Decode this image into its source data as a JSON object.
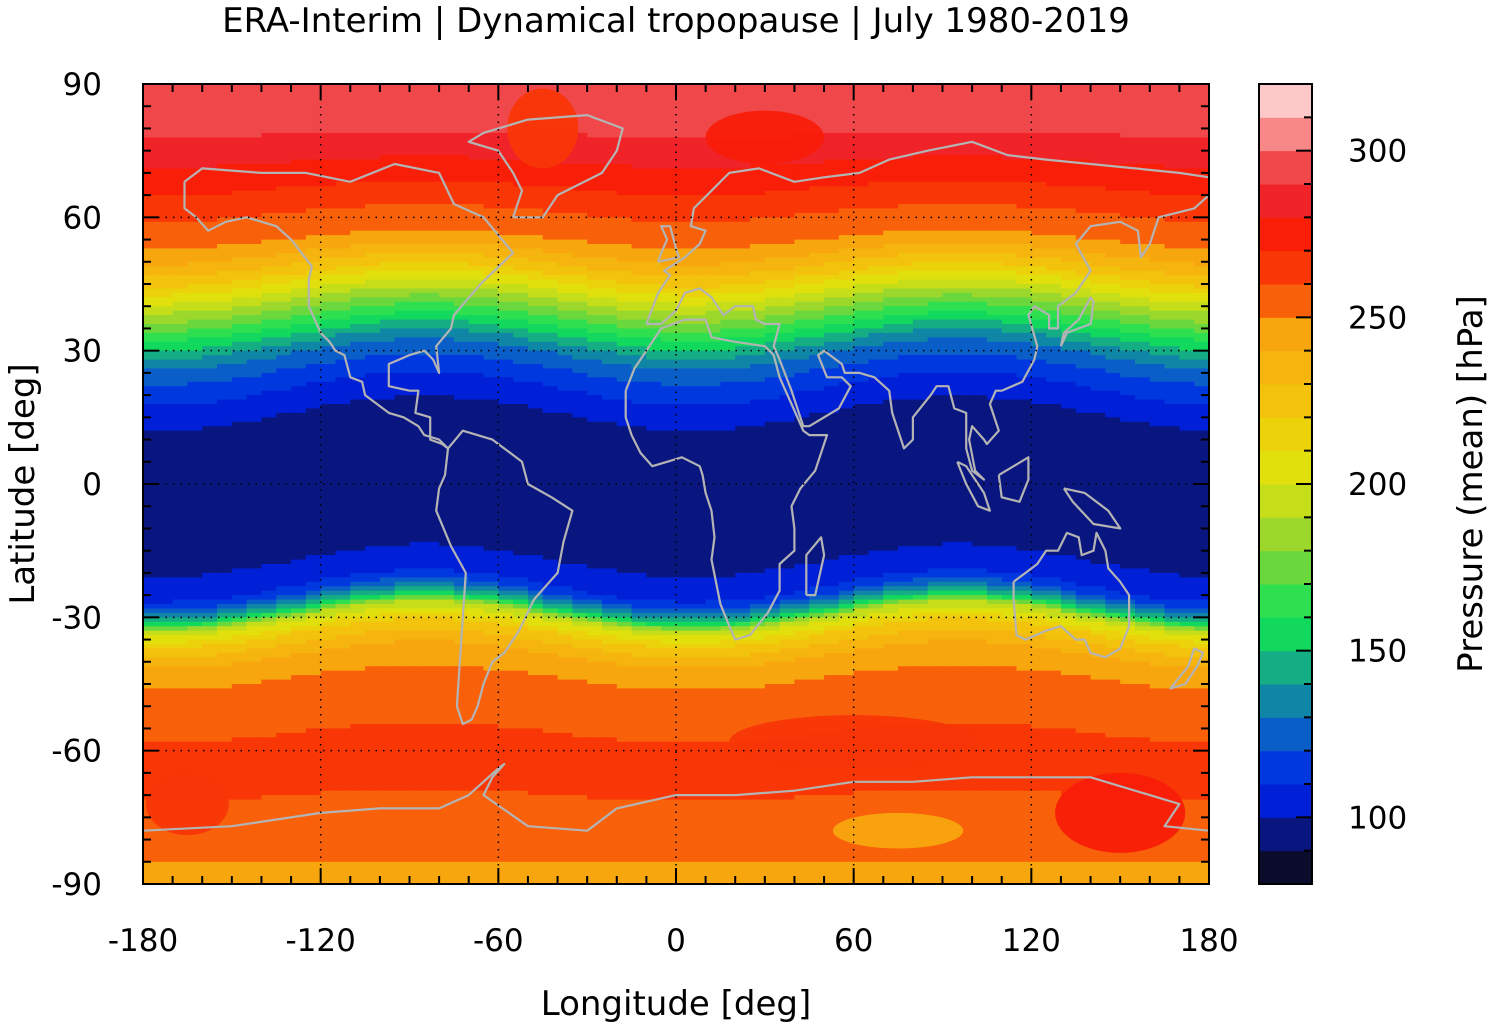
{
  "chart_data": {
    "type": "heatmap",
    "title": "ERA-Interim | Dynamical tropopause | July 1980-2019",
    "xlabel": "Longitude [deg]",
    "ylabel": "Latitude [deg]",
    "colorbar_label": "Pressure (mean) [hPa]",
    "xlim": [
      -180,
      180
    ],
    "ylim": [
      -90,
      90
    ],
    "x_ticks": [
      -180,
      -120,
      -60,
      0,
      60,
      120,
      180
    ],
    "y_ticks": [
      90,
      60,
      30,
      0,
      -30,
      -60,
      -90
    ],
    "x_tick_labels": [
      "-180",
      "-120",
      "-60",
      "0",
      "60",
      "120",
      "180"
    ],
    "y_tick_labels": [
      "90",
      "60",
      "30",
      "0",
      "-30",
      "-60",
      "-90"
    ],
    "colorbar_range": [
      80,
      320
    ],
    "colorbar_ticks": [
      100,
      150,
      200,
      250,
      300
    ],
    "colorbar_tick_labels": [
      "100",
      "150",
      "200",
      "250",
      "300"
    ],
    "grid": true,
    "coastline_color": "#b4b4b4",
    "levels": [
      {
        "from": 80,
        "to": 90,
        "color": "#0b0c2c"
      },
      {
        "from": 90,
        "to": 100,
        "color": "#0a1680"
      },
      {
        "from": 100,
        "to": 110,
        "color": "#0020d8"
      },
      {
        "from": 110,
        "to": 120,
        "color": "#0038e0"
      },
      {
        "from": 120,
        "to": 130,
        "color": "#0a5ec8"
      },
      {
        "from": 130,
        "to": 140,
        "color": "#0f86a6"
      },
      {
        "from": 140,
        "to": 150,
        "color": "#14ad84"
      },
      {
        "from": 150,
        "to": 160,
        "color": "#12d85e"
      },
      {
        "from": 160,
        "to": 170,
        "color": "#2ee050"
      },
      {
        "from": 170,
        "to": 180,
        "color": "#6ad83c"
      },
      {
        "from": 180,
        "to": 190,
        "color": "#9cd82c"
      },
      {
        "from": 190,
        "to": 200,
        "color": "#c6de1a"
      },
      {
        "from": 200,
        "to": 210,
        "color": "#e2e00c"
      },
      {
        "from": 210,
        "to": 220,
        "color": "#ecd20a"
      },
      {
        "from": 220,
        "to": 230,
        "color": "#f2c20c"
      },
      {
        "from": 230,
        "to": 240,
        "color": "#f6b40e"
      },
      {
        "from": 240,
        "to": 250,
        "color": "#f8a60e"
      },
      {
        "from": 250,
        "to": 260,
        "color": "#f8600a"
      },
      {
        "from": 260,
        "to": 270,
        "color": "#f83606"
      },
      {
        "from": 270,
        "to": 280,
        "color": "#f81e08"
      },
      {
        "from": 280,
        "to": 290,
        "color": "#f02428"
      },
      {
        "from": 290,
        "to": 300,
        "color": "#f0484a"
      },
      {
        "from": 300,
        "to": 310,
        "color": "#f88888"
      },
      {
        "from": 310,
        "to": 320,
        "color": "#fcc8c8"
      }
    ],
    "zonal_profile": {
      "lat": [
        -90,
        -80,
        -70,
        -60,
        -50,
        -40,
        -34,
        -30,
        -28,
        -24,
        -20,
        -12,
        0,
        12,
        18,
        24,
        30,
        36,
        42,
        48,
        54,
        60,
        70,
        80,
        90
      ],
      "pressure": [
        248,
        252,
        260,
        262,
        257,
        246,
        222,
        192,
        150,
        112,
        104,
        92,
        90,
        92,
        104,
        114,
        132,
        162,
        192,
        224,
        248,
        258,
        276,
        292,
        296
      ]
    }
  }
}
